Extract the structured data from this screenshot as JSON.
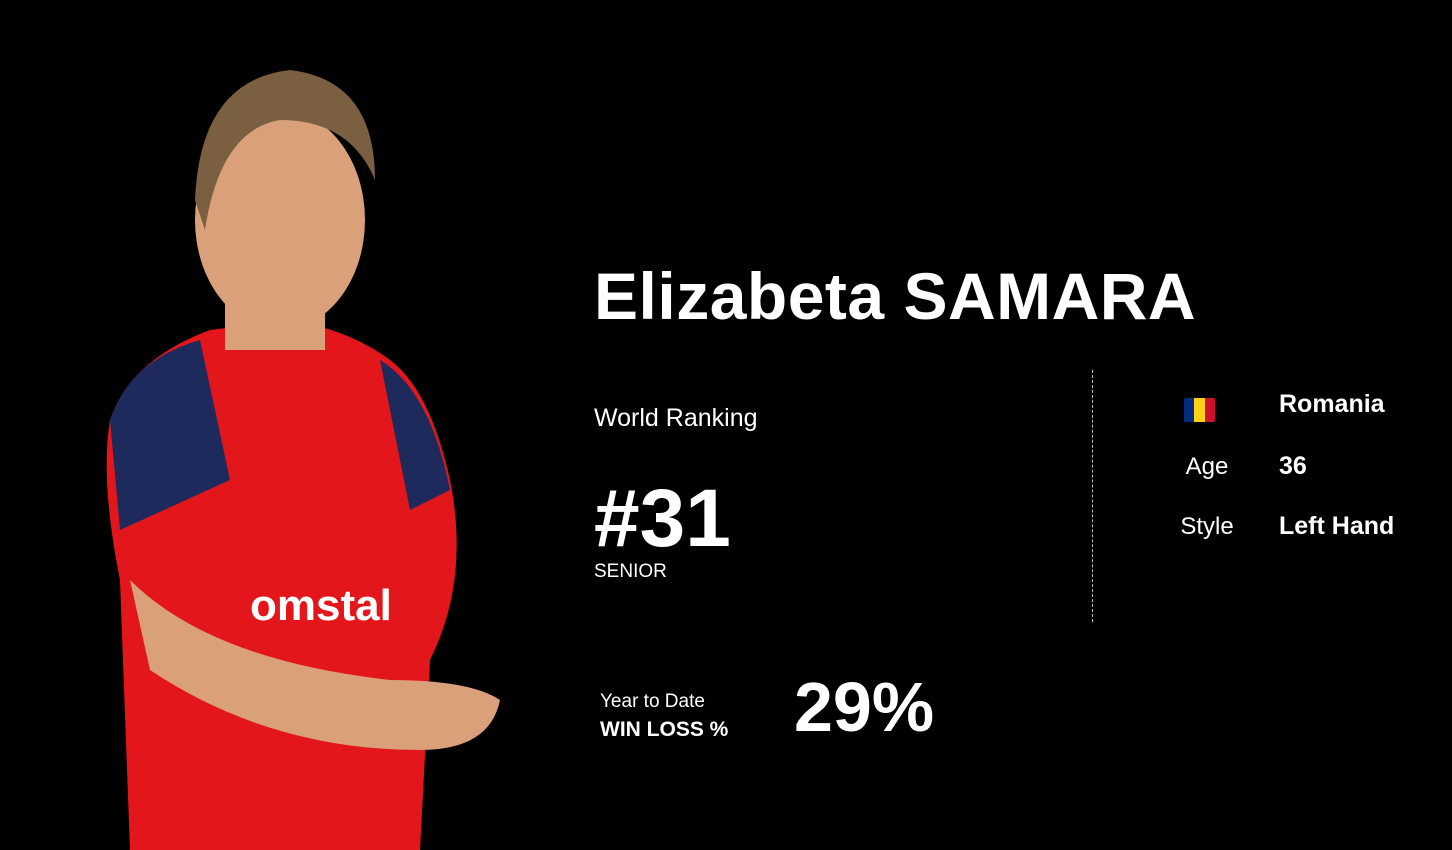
{
  "player": {
    "name": "Elizabeta SAMARA",
    "world_ranking_label": "World Ranking",
    "rank": "#31",
    "category": "SENIOR",
    "country": "Romania",
    "country_flag_colors": [
      "#002b7f",
      "#fcd116",
      "#ce1126"
    ],
    "age_label": "Age",
    "age": "36",
    "style_label": "Style",
    "style": "Left Hand",
    "ytd_label": "Year to Date",
    "win_loss_label": "WIN LOSS %",
    "win_loss_pct": "29%"
  },
  "colors": {
    "background": "#000000",
    "text": "#ffffff",
    "jersey_red": "#e3171b",
    "jersey_navy": "#1f2a5c"
  }
}
